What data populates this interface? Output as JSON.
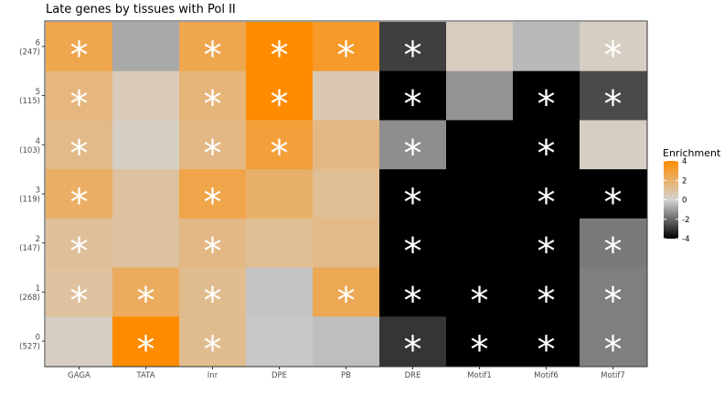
{
  "chart_data": {
    "type": "heatmap",
    "title": "Late genes by tissues with Pol II",
    "xlabel": "",
    "ylabel": "",
    "columns": [
      "GAGA",
      "TATA",
      "Inr",
      "DPE",
      "PB",
      "DRE",
      "Motif1",
      "Motif6",
      "Motif7"
    ],
    "rows": [
      {
        "label": "6",
        "count": "(247)"
      },
      {
        "label": "5",
        "count": "(115)"
      },
      {
        "label": "4",
        "count": "(103)"
      },
      {
        "label": "3",
        "count": "(119)"
      },
      {
        "label": "2",
        "count": "(147)"
      },
      {
        "label": "1",
        "count": "(268)"
      },
      {
        "label": "0",
        "count": "(527)"
      }
    ],
    "values": [
      [
        2.5,
        -0.8,
        2.5,
        4.0,
        3.2,
        -2.8,
        0.4,
        -0.5,
        0.3
      ],
      [
        1.6,
        0.5,
        1.7,
        4.0,
        0.6,
        -4.0,
        -1.2,
        -4.0,
        -2.6
      ],
      [
        1.4,
        0.3,
        1.5,
        2.9,
        1.5,
        -1.3,
        -4.0,
        -4.0,
        0.3
      ],
      [
        2.1,
        1.0,
        2.6,
        2.0,
        1.2,
        -4.0,
        -4.0,
        -4.0,
        -4.0
      ],
      [
        1.1,
        1.0,
        1.5,
        1.2,
        1.4,
        -4.0,
        -4.0,
        -4.0,
        -1.7
      ],
      [
        1.0,
        2.2,
        1.3,
        -0.3,
        2.4,
        -4.0,
        -4.0,
        -4.0,
        -1.6
      ],
      [
        0.3,
        4.0,
        1.3,
        -0.2,
        -0.4,
        -3.0,
        -4.0,
        -4.0,
        -1.6
      ]
    ],
    "significant": [
      [
        true,
        false,
        true,
        true,
        true,
        true,
        false,
        false,
        true
      ],
      [
        true,
        false,
        true,
        true,
        false,
        true,
        false,
        true,
        true
      ],
      [
        true,
        false,
        true,
        true,
        false,
        true,
        false,
        true,
        false
      ],
      [
        true,
        false,
        true,
        false,
        false,
        true,
        false,
        true,
        true
      ],
      [
        true,
        false,
        true,
        false,
        false,
        true,
        false,
        true,
        true
      ],
      [
        true,
        true,
        true,
        false,
        true,
        true,
        true,
        true,
        true
      ],
      [
        false,
        true,
        true,
        false,
        false,
        true,
        true,
        true,
        true
      ]
    ],
    "significance_marker": "*",
    "legend": {
      "title": "Enrichment",
      "placement": "right",
      "ticks": [
        4,
        2,
        0,
        -2,
        -4
      ],
      "tick_labels": [
        "4",
        "2",
        "0",
        "-2",
        "-4"
      ],
      "range": [
        -4,
        4
      ]
    },
    "colors": {
      "low": "#000000",
      "mid": "#d3d3d3",
      "high": "#ff8c00"
    }
  }
}
